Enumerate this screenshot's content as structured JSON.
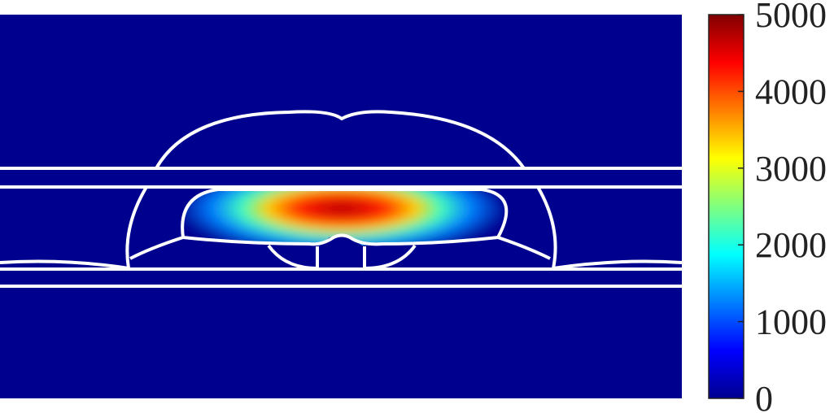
{
  "chart_data": {
    "type": "heatmap",
    "title": "",
    "xlabel": "",
    "ylabel": "",
    "colormap": "jet",
    "colorbar": {
      "range": [
        0,
        5000
      ],
      "ticks": [
        0,
        1000,
        2000,
        3000,
        4000,
        5000
      ],
      "tick_labels": [
        "0",
        "1000",
        "2000",
        "3000",
        "4000",
        "5000"
      ]
    },
    "background_value": 0,
    "peak_value": 5000,
    "contour_color": "#ffffff",
    "background_color": "#00008f",
    "grid": false,
    "axes_visible": false
  }
}
